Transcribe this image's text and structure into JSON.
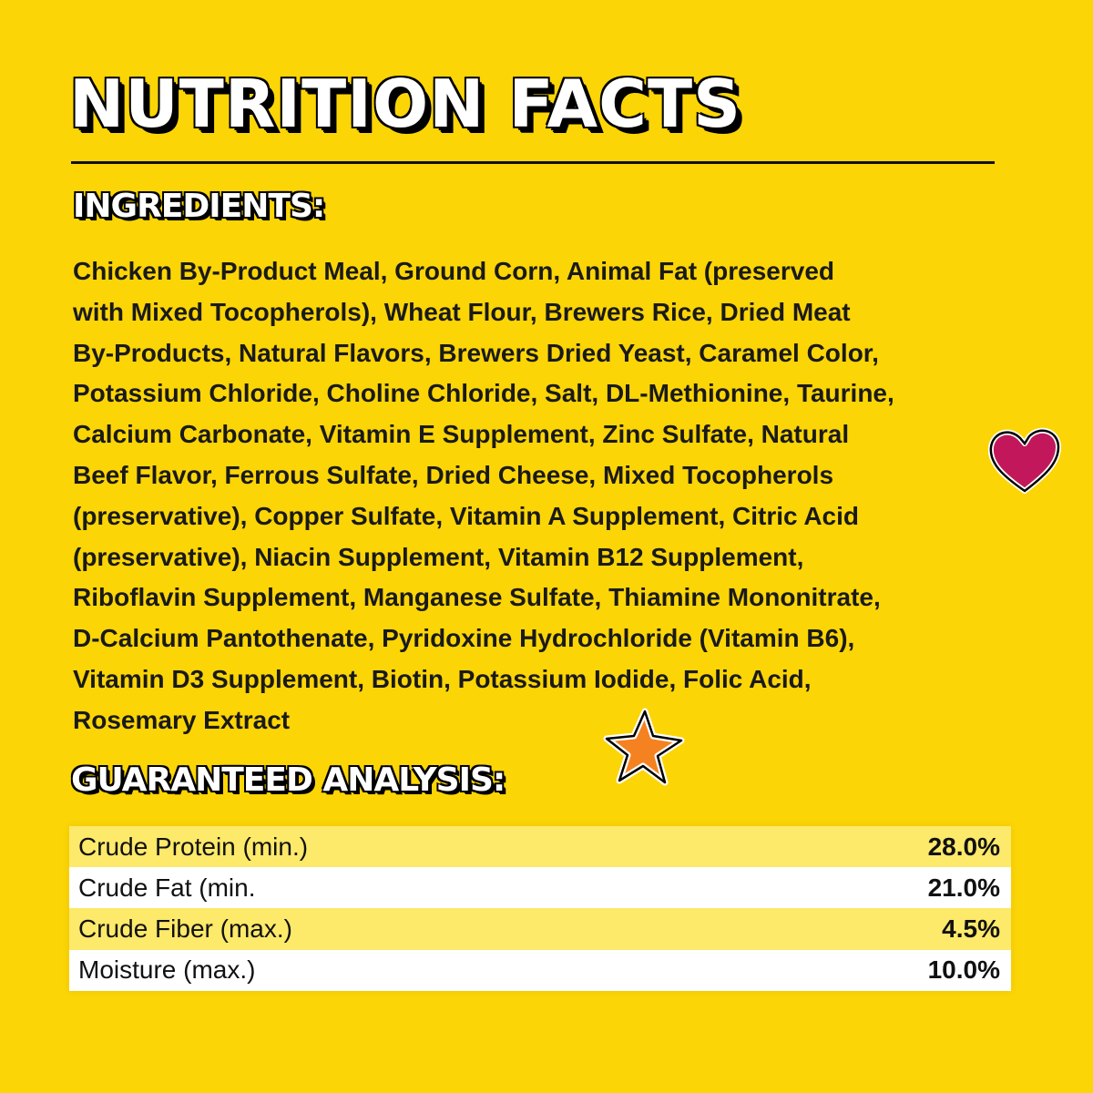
{
  "title": "NUTRITION FACTS",
  "ingredients": {
    "heading": "INGREDIENTS:",
    "lines": [
      "Chicken By-Product Meal, Ground Corn, Animal Fat (preserved",
      "with Mixed Tocopherols), Wheat Flour, Brewers Rice, Dried Meat",
      "By-Products, Natural Flavors, Brewers Dried Yeast, Caramel Color,",
      "Potassium Chloride, Choline Chloride, Salt, DL-Methionine, Taurine,",
      "Calcium Carbonate, Vitamin E Supplement, Zinc Sulfate, Natural",
      "Beef Flavor, Ferrous Sulfate, Dried Cheese, Mixed Tocopherols",
      "(preservative), Copper Sulfate, Vitamin A Supplement, Citric Acid",
      "(preservative), Niacin Supplement, Vitamin B12 Supplement,",
      "Riboflavin Supplement, Manganese Sulfate, Thiamine Mononitrate,",
      "D-Calcium Pantothenate, Pyridoxine Hydrochloride (Vitamin B6),",
      "Vitamin D3 Supplement, Biotin, Potassium Iodide, Folic Acid,",
      "Rosemary Extract"
    ]
  },
  "analysis": {
    "heading": "GUARANTEED ANALYSIS:",
    "rows": [
      {
        "label": "Crude Protein (min.)",
        "value": "28.0%"
      },
      {
        "label": "Crude Fat (min.",
        "value": "21.0%"
      },
      {
        "label": "Crude Fiber (max.)",
        "value": "4.5%"
      },
      {
        "label": "Moisture (max.)",
        "value": "10.0%"
      }
    ]
  },
  "colors": {
    "background": "#FCD506",
    "row_highlight": "#FDE96A",
    "heart": "#C2185B",
    "star": "#F58220"
  },
  "icons": [
    "heart-icon",
    "star-icon"
  ]
}
